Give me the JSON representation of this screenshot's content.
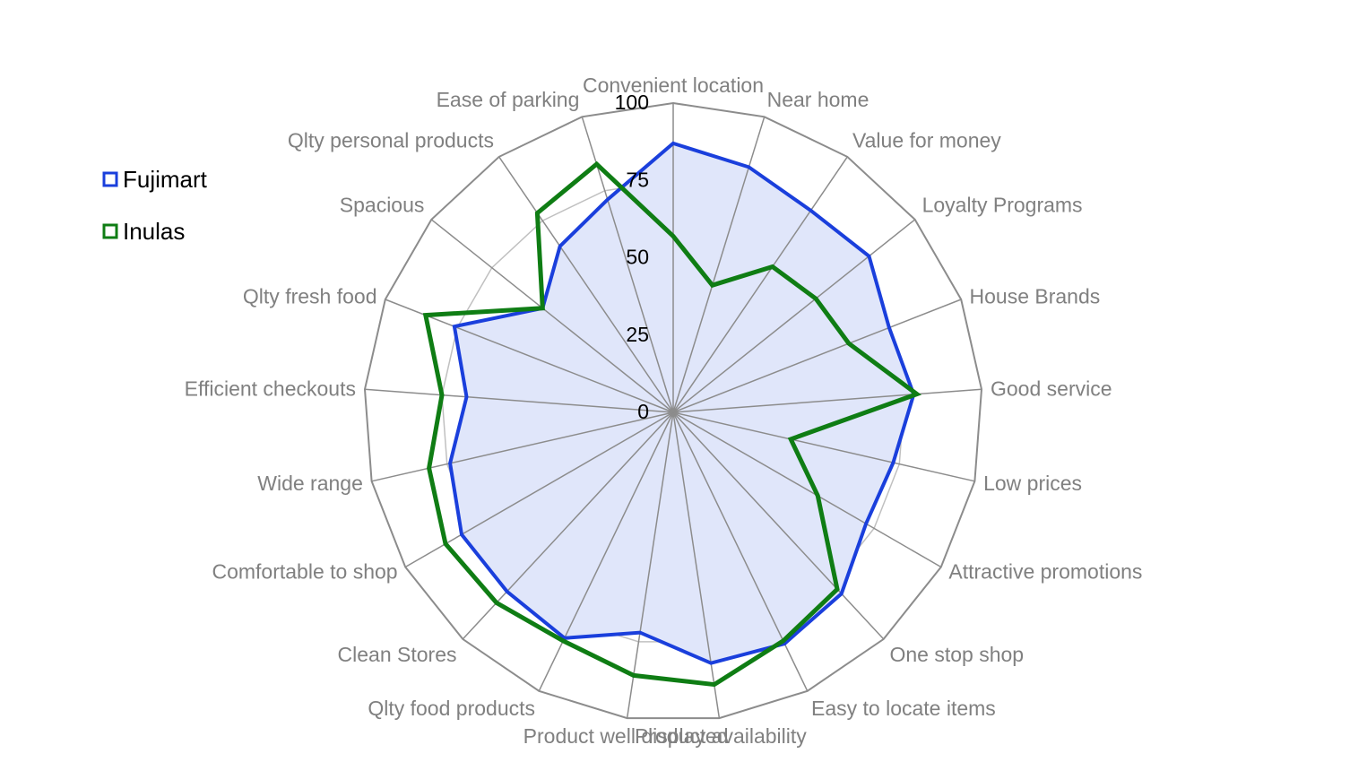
{
  "chart_data": {
    "type": "radar",
    "categories": [
      "Convenient location",
      "Near home",
      "Value for money",
      "Loyalty Programs",
      "House Brands",
      "Good service",
      "Low prices",
      "Attractive promotions",
      "One stop shop",
      "Easy to locate items",
      "Product availability",
      "Product well displayed",
      "Qlty food products",
      "Clean Stores",
      "Comfortable to shop",
      "Wide range",
      "Efficient checkouts",
      "Qlty fresh food",
      "Spacious",
      "Qlty personal products",
      "Ease of parking"
    ],
    "series": [
      {
        "name": "Fujimart",
        "color": "#1a3fdc",
        "fill": "#e0e6fa",
        "values": [
          87,
          83,
          79,
          81,
          75,
          78,
          73,
          72,
          80,
          83,
          82,
          72,
          81,
          79,
          79,
          74,
          67,
          76,
          54,
          65,
          72
        ]
      },
      {
        "name": "Inulas",
        "color": "#0f7d14",
        "fill": "none",
        "values": [
          57,
          43,
          57,
          59,
          61,
          79,
          39,
          54,
          78,
          82,
          89,
          86,
          82,
          84,
          85,
          81,
          75,
          86,
          54,
          78,
          84
        ]
      }
    ],
    "rlim": [
      0,
      100
    ],
    "ticks": [
      0,
      25,
      50,
      75,
      100
    ],
    "grid": true,
    "legend": "left"
  }
}
